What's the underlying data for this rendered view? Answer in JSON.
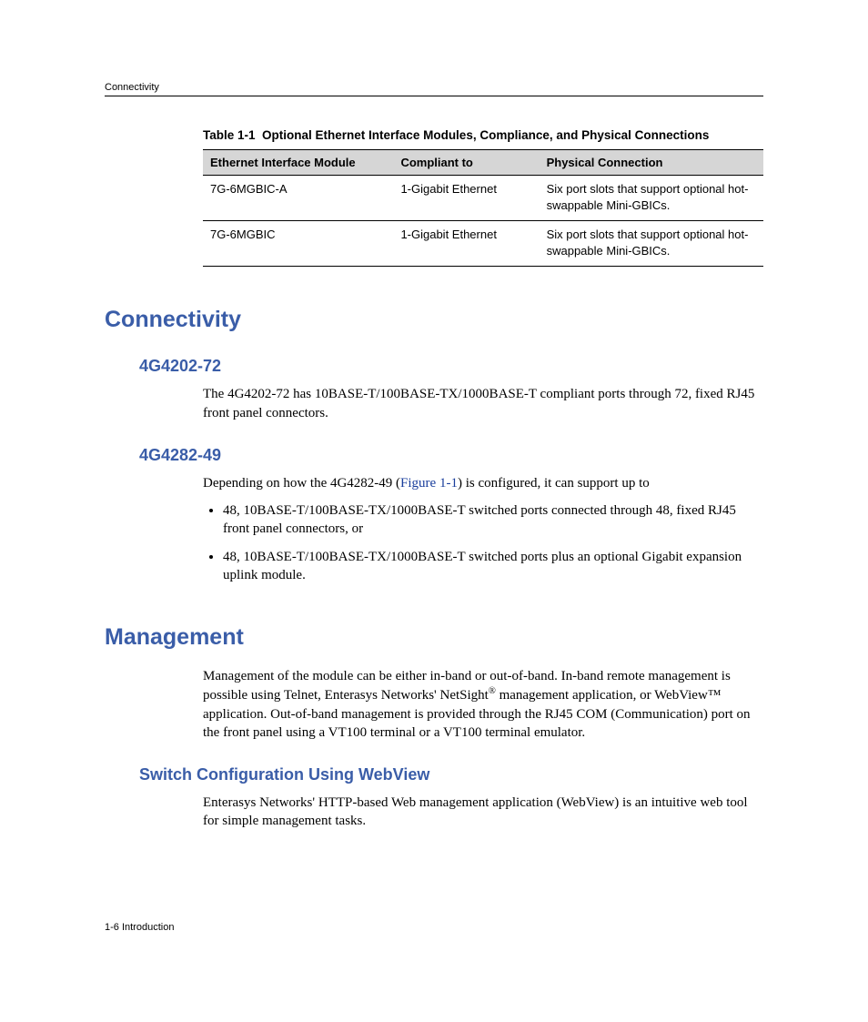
{
  "header": {
    "running_head": "Connectivity"
  },
  "table": {
    "caption_label": "Table 1-1",
    "caption_text": "Optional Ethernet Interface Modules, Compliance, and Physical Connections",
    "columns": [
      "Ethernet Interface Module",
      "Compliant to",
      "Physical Connection"
    ],
    "rows": [
      [
        "7G-6MGBIC-A",
        "1-Gigabit Ethernet",
        "Six port slots that support optional hot-swappable Mini-GBICs."
      ],
      [
        "7G-6MGBIC",
        "1-Gigabit Ethernet",
        "Six port slots that support optional hot-swappable Mini-GBICs."
      ]
    ]
  },
  "sections": {
    "connectivity": {
      "title": "Connectivity",
      "sub1": {
        "title": "4G4202-72",
        "para": "The 4G4202-72 has 10BASE-T/100BASE-TX/1000BASE-T compliant ports through 72, fixed RJ45 front panel connectors."
      },
      "sub2": {
        "title": "4G4282-49",
        "lead_pre": "Depending on how the 4G4282-49 (",
        "xref": "Figure 1-1",
        "lead_post": ") is configured, it can support up to",
        "bullets": [
          "48, 10BASE-T/100BASE-TX/1000BASE-T switched ports connected through 48, fixed RJ45 front panel connectors, or",
          "48, 10BASE-T/100BASE-TX/1000BASE-T switched ports plus an optional Gigabit expansion uplink module."
        ]
      }
    },
    "management": {
      "title": "Management",
      "para_pre": "Management of the module can be either in-band or out-of-band. In-band remote management is possible using Telnet, Enterasys Networks' NetSight",
      "reg": "®",
      "para_mid": " management application, or WebView",
      "tm": "™",
      "para_post": " application. Out-of-band management is provided through the RJ45 COM (Communication) port on the front panel using a VT100 terminal or a VT100 terminal emulator.",
      "sub1": {
        "title": "Switch Configuration Using WebView",
        "para": "Enterasys Networks' HTTP-based Web management application (WebView) is an intuitive web tool for simple management tasks."
      }
    }
  },
  "footer": {
    "text": "1-6   Introduction"
  }
}
